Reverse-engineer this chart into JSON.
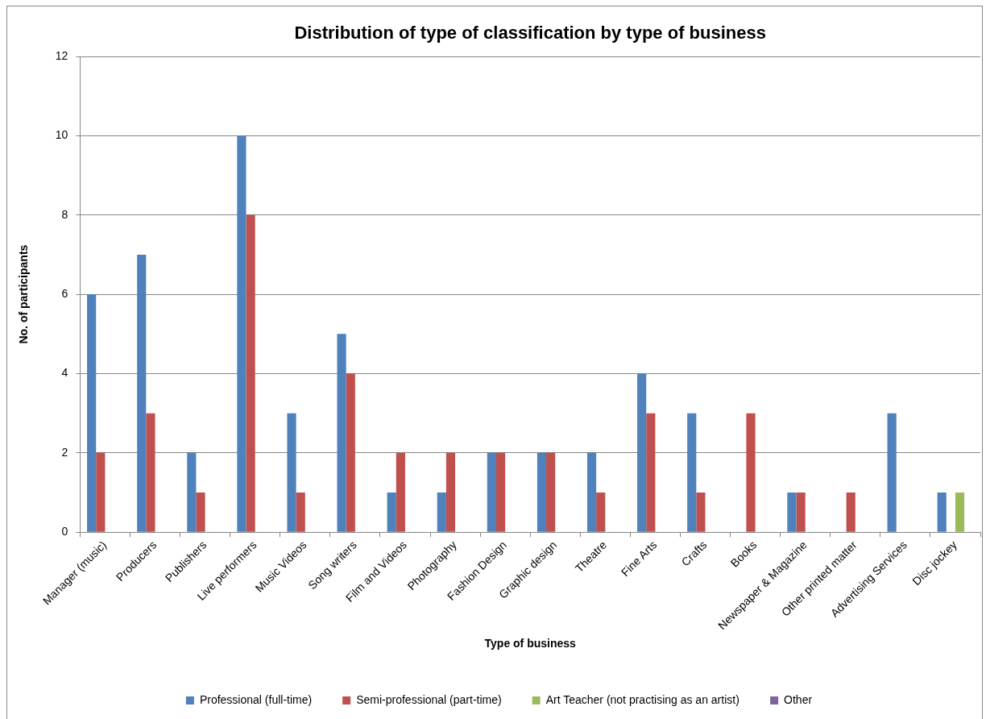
{
  "chart_data": {
    "type": "bar",
    "title": "Distribution of type of classification by type of business",
    "xlabel": "Type of business",
    "ylabel": "No. of participants",
    "categories": [
      "Manager (music)",
      "Producers",
      "Publishers",
      "Live performers",
      "Music Videos",
      "Song writers",
      "Film and Videos",
      "Photography",
      "Fashion Design",
      "Graphic design",
      "Theatre",
      "Fine Arts",
      "Crafts",
      "Books",
      "Newspaper & Magazine",
      "Other printed matter",
      "Advertising Services",
      "Disc jockey"
    ],
    "series": [
      {
        "name": "Professional (full-time)",
        "color": "#4f81bd",
        "values": [
          6,
          7,
          2,
          10,
          3,
          5,
          1,
          1,
          2,
          2,
          2,
          4,
          3,
          null,
          1,
          null,
          3,
          1
        ]
      },
      {
        "name": "Semi-professional (part-time)",
        "color": "#c0504d",
        "values": [
          2,
          3,
          1,
          8,
          1,
          4,
          2,
          2,
          2,
          2,
          1,
          3,
          1,
          3,
          1,
          1,
          null,
          null
        ]
      },
      {
        "name": "Art Teacher (not practising as an artist)",
        "color": "#9bbb59",
        "values": [
          null,
          null,
          null,
          null,
          null,
          null,
          null,
          null,
          null,
          null,
          null,
          null,
          null,
          null,
          null,
          null,
          null,
          1
        ]
      },
      {
        "name": "Other",
        "color": "#8064a2",
        "values": [
          null,
          null,
          null,
          null,
          null,
          null,
          null,
          null,
          null,
          null,
          null,
          null,
          null,
          null,
          null,
          null,
          null,
          null
        ]
      }
    ],
    "ylim": [
      0,
      12
    ],
    "yticks": [
      0,
      2,
      4,
      6,
      8,
      10,
      12
    ],
    "grid": "y",
    "legend": "bottom"
  }
}
